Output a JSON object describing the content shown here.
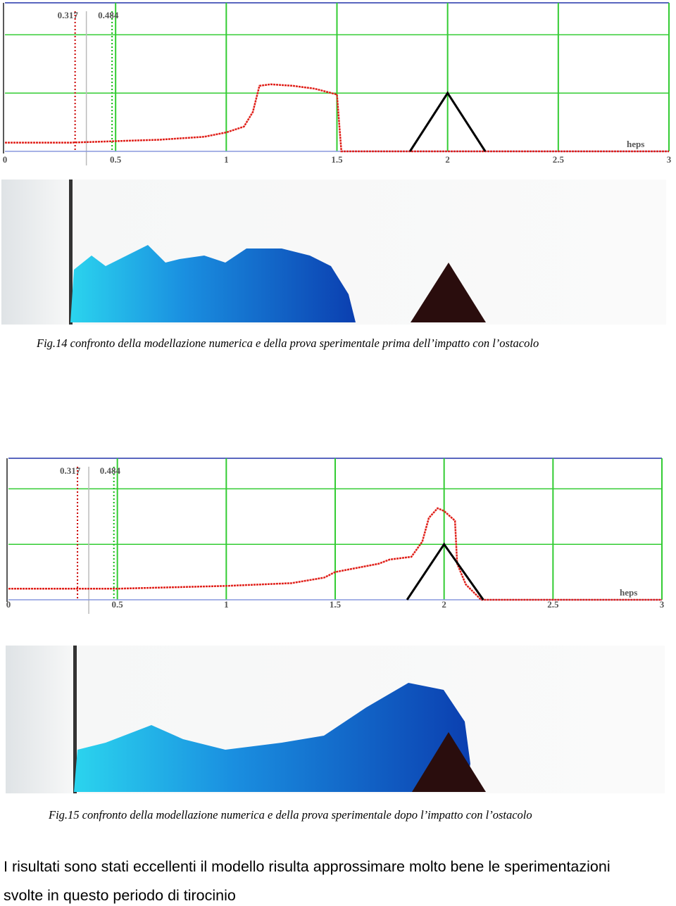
{
  "chart_data": [
    {
      "type": "line",
      "x_label": "heps",
      "markers": [
        0.317,
        0.484
      ],
      "xlim": [
        0,
        3
      ],
      "xticks": [
        0,
        0.5,
        1,
        1.5,
        2,
        2.5,
        3
      ],
      "ylim": [
        0,
        1
      ],
      "yticks": [
        0.4,
        0.8
      ],
      "grid": true,
      "series": [
        {
          "color": "#e0201a",
          "x": [
            0,
            0.3,
            0.5,
            0.7,
            0.9,
            1.0,
            1.08,
            1.12,
            1.15,
            1.2,
            1.3,
            1.4,
            1.5,
            1.52,
            1.6,
            2.0,
            2.5,
            3
          ],
          "values": [
            0.06,
            0.06,
            0.07,
            0.08,
            0.1,
            0.13,
            0.17,
            0.27,
            0.45,
            0.46,
            0.45,
            0.43,
            0.39,
            0,
            0,
            0,
            0,
            0
          ]
        },
        {
          "color": "#000000",
          "x": [
            1.83,
            2.0,
            2.17
          ],
          "values": [
            0,
            0.4,
            0
          ]
        }
      ]
    },
    {
      "type": "line",
      "x_label": "heps",
      "markers": [
        0.317,
        0.484
      ],
      "xlim": [
        0,
        3
      ],
      "xticks": [
        0,
        0.5,
        1,
        1.5,
        2,
        2.5,
        3
      ],
      "ylim": [
        0,
        1
      ],
      "yticks": [
        0.4,
        0.8
      ],
      "grid": true,
      "series": [
        {
          "color": "#e0201a",
          "x": [
            0,
            0.5,
            1.0,
            1.3,
            1.45,
            1.5,
            1.7,
            1.75,
            1.85,
            1.9,
            1.93,
            1.97,
            2.0,
            2.05,
            2.06,
            2.1,
            2.17,
            2.5,
            3
          ],
          "values": [
            0.08,
            0.08,
            0.1,
            0.12,
            0.16,
            0.2,
            0.26,
            0.29,
            0.31,
            0.42,
            0.59,
            0.66,
            0.64,
            0.57,
            0.26,
            0.11,
            0,
            0,
            0
          ]
        },
        {
          "color": "#000000",
          "x": [
            1.83,
            2.0,
            2.18
          ],
          "values": [
            0,
            0.4,
            0
          ]
        }
      ]
    }
  ],
  "captions": [
    "Fig.14 confronto della modellazione numerica e della prova sperimentale prima dell’impatto con l’ostacolo",
    "Fig.15 confronto della modellazione numerica e della prova sperimentale dopo l’impatto con l’ostacolo"
  ],
  "body": [
    "I risultati sono stati eccellenti il modello risulta approssimare molto bene le sperimentazioni",
    "svolte in questo periodo di tirocinio"
  ]
}
